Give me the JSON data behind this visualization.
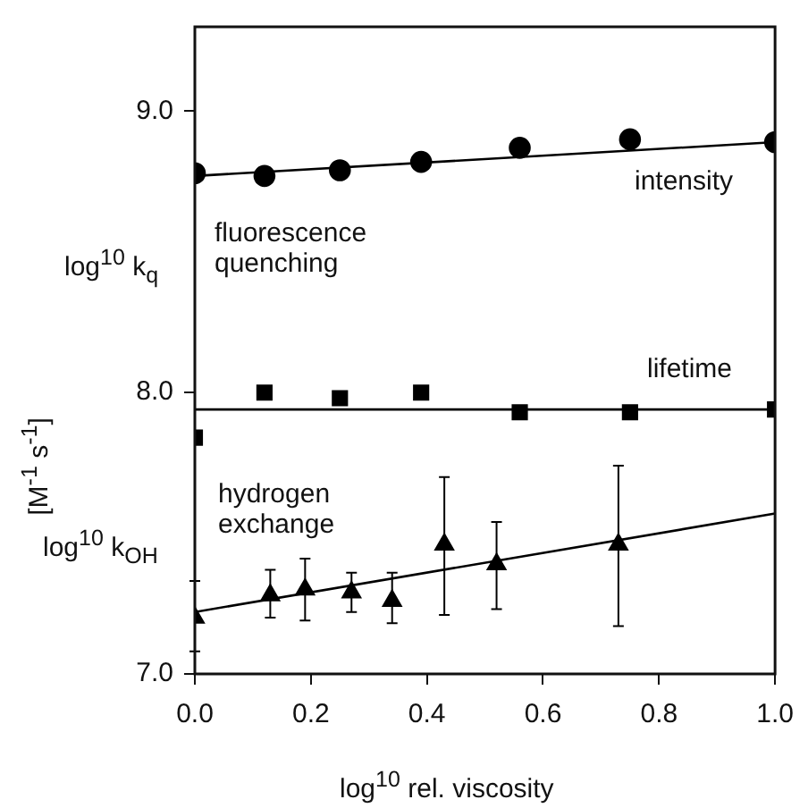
{
  "chart_data": {
    "type": "scatter",
    "xlabel": "log$^{10}$ rel. viscosity",
    "ylabel": "[M$^{-1}$ s$^{-1}$]",
    "xlim": [
      0,
      1
    ],
    "xticks": [
      {
        "value": 0,
        "label": "0.0"
      },
      {
        "value": 0.2,
        "label": "0.2"
      },
      {
        "value": 0.4,
        "label": "0.4"
      },
      {
        "value": 0.6,
        "label": "0.6"
      },
      {
        "value": 0.8,
        "label": "0.8"
      },
      {
        "value": 1,
        "label": "1.0"
      }
    ],
    "ylim": [
      7,
      9.3
    ],
    "yticks": [
      {
        "value": 7,
        "label": "7.0"
      },
      {
        "value": 8,
        "label": "8.0"
      },
      {
        "value": 9,
        "label": "9.0"
      }
    ],
    "grid": false,
    "legend": false,
    "annotations": [
      "log$^{10}$ k$_{q}$",
      "fluorescence quenching",
      "log$^{10}$ k$_{OH}$"
    ],
    "series": [
      {
        "name": "intensity",
        "marker": "circle",
        "color": "#000000",
        "x": [
          0,
          0.12,
          0.25,
          0.39,
          0.56,
          0.75,
          1.0
        ],
        "values": [
          8.78,
          8.77,
          8.79,
          8.82,
          8.87,
          8.9,
          8.89
        ]
      },
      {
        "name": "lifetime",
        "marker": "square",
        "color": "#000000",
        "x": [
          0,
          0.12,
          0.25,
          0.39,
          0.56,
          0.75,
          1.0
        ],
        "values": [
          7.84,
          8.0,
          7.98,
          8.0,
          7.93,
          7.93,
          7.94
        ]
      },
      {
        "name": "hydrogen exchange",
        "marker": "triangle",
        "color": "#000000",
        "x": [
          0,
          0.13,
          0.19,
          0.27,
          0.34,
          0.43,
          0.52,
          0.73
        ],
        "values": [
          7.2,
          7.28,
          7.3,
          7.29,
          7.26,
          7.46,
          7.39,
          7.46
        ],
        "errors": [
          [
            7.08,
            7.33
          ],
          [
            7.2,
            7.37
          ],
          [
            7.19,
            7.41
          ],
          [
            7.22,
            7.36
          ],
          [
            7.18,
            7.36
          ],
          [
            7.21,
            7.7
          ],
          [
            7.23,
            7.54
          ],
          [
            7.17,
            7.74
          ]
        ]
      },
      {
        "type": "line",
        "marker": "none",
        "color": "#000000",
        "x": [
          0,
          1
        ],
        "values": [
          8.77,
          8.89
        ]
      },
      {
        "type": "line",
        "marker": "none",
        "color": "#000000",
        "x": [
          0,
          1
        ],
        "values": [
          7.94,
          7.94
        ]
      },
      {
        "type": "line",
        "marker": "none",
        "color": "#000000",
        "x": [
          0,
          1
        ],
        "values": [
          7.22,
          7.57
        ]
      }
    ]
  }
}
